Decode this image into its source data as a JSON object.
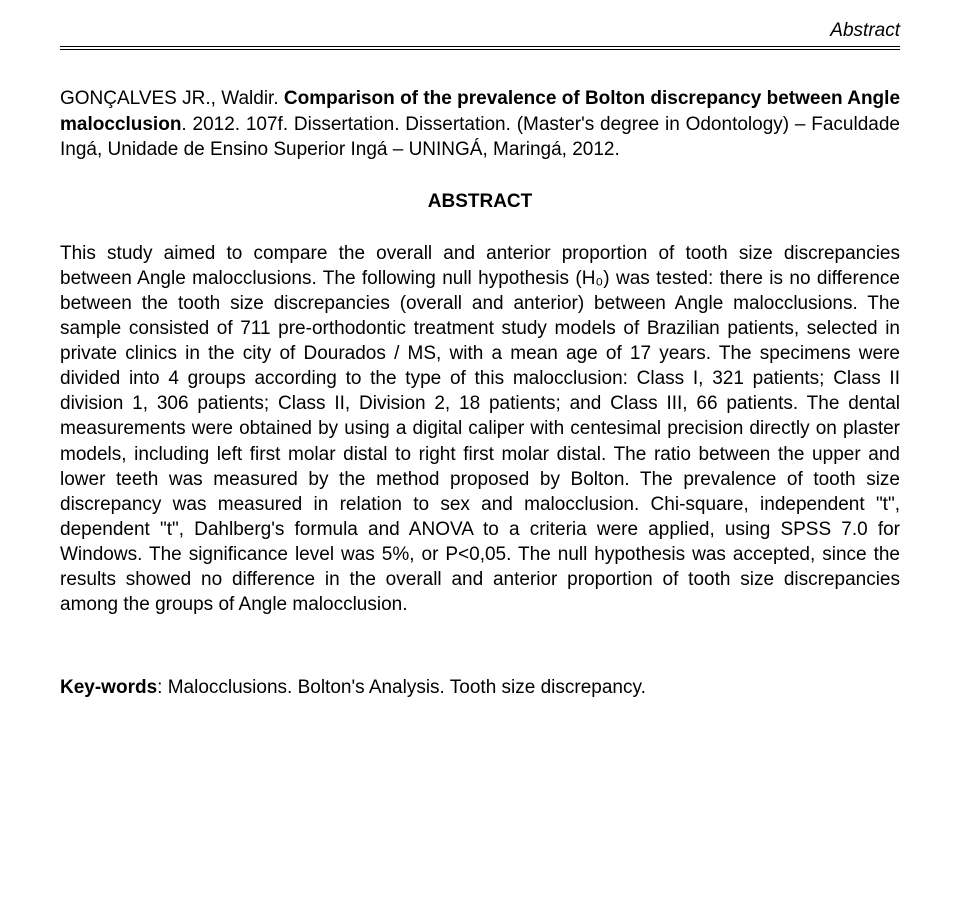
{
  "header": {
    "label": "Abstract"
  },
  "citation": {
    "author": "GONÇALVES JR., Waldir. ",
    "title": "Comparison of the prevalence of Bolton discrepancy between Angle malocclusion",
    "rest": ". 2012. 107f. Dissertation. Dissertation. (Master's degree in Odontology) – Faculdade Ingá, Unidade de Ensino Superior Ingá – UNINGÁ, Maringá, 2012."
  },
  "section_title": "ABSTRACT",
  "abstract_text": "This study aimed to compare the overall and anterior proportion of tooth size discrepancies between Angle malocclusions. The following null hypothesis (H₀) was tested: there is no difference between the tooth size discrepancies (overall and anterior) between Angle malocclusions. The sample consisted of 711 pre-orthodontic treatment study models of Brazilian patients, selected in private clinics in the city of Dourados / MS, with a mean age of 17 years. The specimens were divided into 4 groups according to the type of this malocclusion: Class I, 321 patients; Class II division 1, 306 patients; Class II, Division 2, 18 patients; and Class III, 66 patients. The dental measurements were obtained by using a digital caliper with centesimal precision directly on plaster models, including left first molar distal to right first molar distal. The ratio between the upper and lower teeth was measured by the method proposed by Bolton. The prevalence of tooth size discrepancy was measured in relation to sex and malocclusion. Chi-square, independent \"t\", dependent \"t\", Dahlberg's formula and ANOVA to a criteria were applied, using SPSS 7.0 for Windows. The significance level was 5%, or P<0,05. The null hypothesis was accepted, since the results showed no difference in the overall and anterior proportion of tooth size discrepancies among the groups of Angle malocclusion.",
  "keywords": {
    "label": "Key-words",
    "values": ": Malocclusions. Bolton's Analysis. Tooth size discrepancy."
  }
}
